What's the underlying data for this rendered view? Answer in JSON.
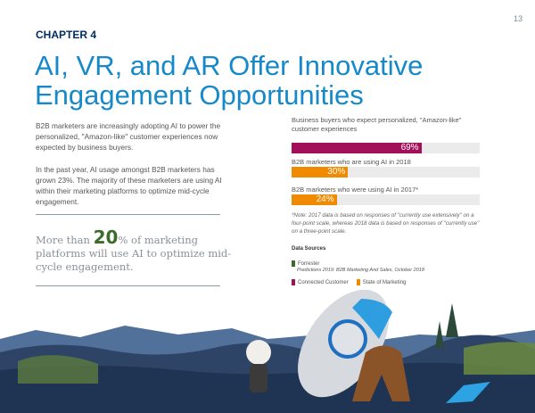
{
  "page_number": "13",
  "chapter": "CHAPTER 4",
  "title": "AI, VR, and AR Offer Innovative Engagement Opportunities",
  "paragraphs": [
    "B2B marketers are increasingly adopting AI to power the personalized, \"Amazon-like\" customer experiences now expected by business buyers.",
    "In the past year, AI usage amongst B2B marketers has grown 23%. The majority of these marketers are using AI within their marketing platforms to optimize mid-cycle engagement."
  ],
  "quote": {
    "pre": "More than ",
    "number": "20",
    "post": "% of marketing platforms will use AI to optimize mid-cycle engagement."
  },
  "colors": {
    "title": "#1589c9",
    "chapter": "#032d60",
    "connected_customer": "#a3105a",
    "state_of_marketing": "#f08a00",
    "forrester": "#3c6b2c"
  },
  "chart_data": {
    "type": "bar",
    "orientation": "horizontal",
    "xlim": [
      0,
      100
    ],
    "categories": [
      "Business buyers who expect personalized, \"Amazon-like\" customer experiences",
      "B2B marketers who are using AI in 2018",
      "B2B marketers who were using AI in 2017*"
    ],
    "values": [
      69,
      30,
      24
    ],
    "labels": [
      "69%",
      "30%",
      "24%"
    ],
    "bar_colors": [
      "#a3105a",
      "#f08a00",
      "#f08a00"
    ]
  },
  "note": "*Note: 2017 data is based on responses of \"currently use extensively\" on a four-point scale, whereas 2018 data is based on responses of \"currently use\" on a three-point scale.",
  "sources": {
    "heading": "Data Sources",
    "forrester": "Forrester",
    "forrester_ref": "Predictions 2019: B2B Marketing And Sales, October 2018",
    "connected": "Connected Customer",
    "state": "State of Marketing"
  }
}
